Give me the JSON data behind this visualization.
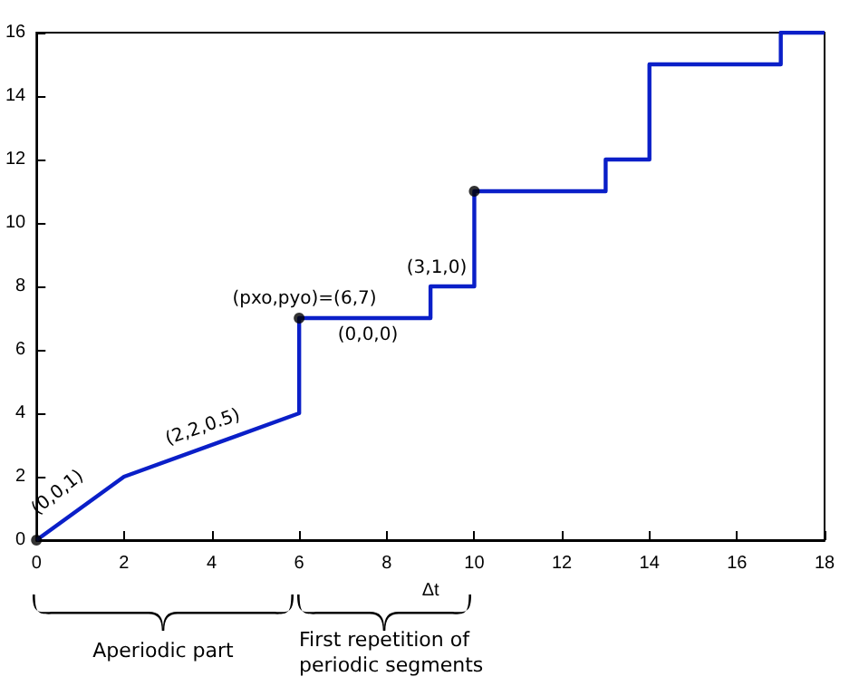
{
  "chart_data": {
    "type": "line",
    "xlabel": "Δt",
    "series": [
      {
        "color": "#0a1fc8",
        "x": [
          0,
          2,
          6,
          6,
          9,
          9,
          10,
          10,
          13,
          13,
          14,
          14,
          17,
          17,
          18
        ],
        "values": [
          0,
          2,
          4,
          7,
          7,
          8,
          8,
          11,
          11,
          12,
          12,
          15,
          15,
          16,
          16
        ]
      },
      {
        "type": "scatter",
        "color": "#000000",
        "x": [
          0,
          6,
          10
        ],
        "values": [
          0,
          7,
          11
        ]
      }
    ],
    "xlim": [
      0,
      18
    ],
    "xticks": [
      0,
      2,
      4,
      6,
      8,
      10,
      12,
      14,
      16,
      18
    ],
    "ylim": [
      0,
      16
    ],
    "yticks": [
      0,
      2,
      4,
      6,
      8,
      10,
      12,
      14,
      16
    ],
    "grid": false,
    "annotations": [
      "(0,0,1)",
      "(2,2,0.5)",
      "(pxo,pyo)=(6,7)",
      "(0,0,0)",
      "(3,1,0)",
      "Aperiodic part",
      "First repetition of\nperiodic segments"
    ]
  }
}
